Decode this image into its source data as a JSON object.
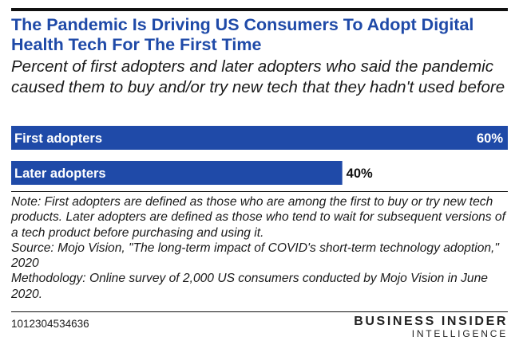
{
  "title": "The Pandemic Is Driving US Consumers To Adopt Digital Health Tech For The First Time",
  "subtitle": "Percent of first adopters and later adopters who said the pandemic caused them to buy and/or try new tech that they hadn't used before",
  "chart_data": {
    "type": "bar",
    "orientation": "horizontal",
    "categories": [
      "First adopters",
      "Later adopters"
    ],
    "values": [
      60,
      40
    ],
    "value_labels": [
      "60%",
      "40%"
    ],
    "xlim": [
      0,
      60
    ],
    "grid": false,
    "bar_color": "#1f4aa8"
  },
  "notes": {
    "note": "Note: First adopters are defined as those who are among the first to buy or try new tech products. Later adopters are defined as those who tend to wait for subsequent versions of a tech product before purchasing and using it.",
    "source": "Source: Mojo Vision, \"The long-term impact of COVID's short-term technology adoption,\" 2020",
    "methodology": "Methodology: Online survey of 2,000 US consumers conducted by Mojo Vision in June 2020."
  },
  "chart_id": "1012304534636",
  "brand": {
    "line1": "BUSINESS INSIDER",
    "line2": "INTELLIGENCE"
  },
  "colors": {
    "accent": "#1f4aa8",
    "text": "#111111"
  }
}
